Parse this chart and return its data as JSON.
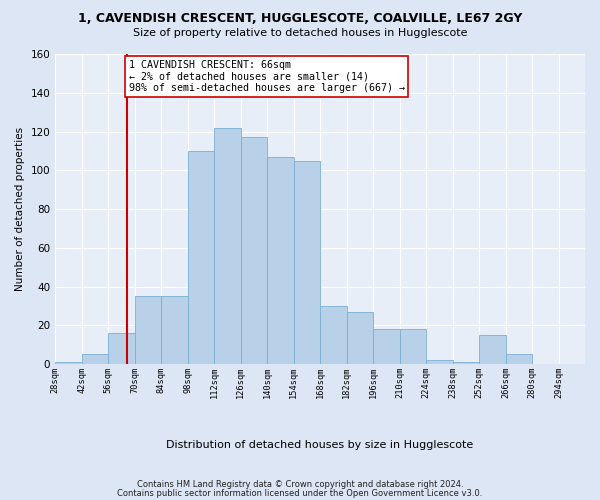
{
  "title": "1, CAVENDISH CRESCENT, HUGGLESCOTE, COALVILLE, LE67 2GY",
  "subtitle": "Size of property relative to detached houses in Hugglescote",
  "xlabel": "Distribution of detached houses by size in Hugglescote",
  "ylabel": "Number of detached properties",
  "bin_edges": [
    28,
    42,
    56,
    70,
    84,
    98,
    112,
    126,
    140,
    154,
    168,
    182,
    196,
    210,
    224,
    238,
    252,
    266,
    280,
    294,
    308
  ],
  "bin_counts": [
    1,
    5,
    16,
    35,
    35,
    110,
    122,
    117,
    107,
    105,
    30,
    27,
    18,
    18,
    2,
    1,
    15,
    5,
    0,
    0
  ],
  "property_size": 66,
  "bar_color": "#b8d0e8",
  "bar_edgecolor": "#7aafd4",
  "vline_color": "#cc0000",
  "annotation_text": "1 CAVENDISH CRESCENT: 66sqm\n← 2% of detached houses are smaller (14)\n98% of semi-detached houses are larger (667) →",
  "annotation_box_edgecolor": "#cc0000",
  "annotation_box_facecolor": "white",
  "footnote1": "Contains HM Land Registry data © Crown copyright and database right 2024.",
  "footnote2": "Contains public sector information licensed under the Open Government Licence v3.0.",
  "bg_color": "#dce6f5",
  "plot_bg_color": "#e8eef8",
  "grid_color": "#ffffff",
  "ylim": [
    0,
    160
  ],
  "yticks": [
    0,
    20,
    40,
    60,
    80,
    100,
    120,
    140,
    160
  ]
}
